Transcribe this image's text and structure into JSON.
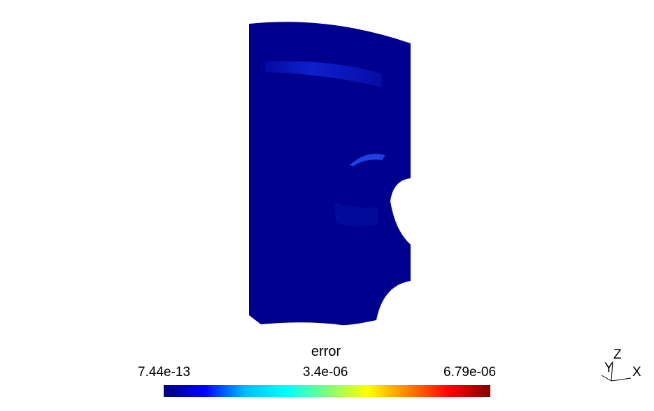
{
  "legend": {
    "title": "error",
    "tick_min": "7.44e-13",
    "tick_mid": "3.4e-06",
    "tick_max": "6.79e-06",
    "colormap": [
      "#00007f",
      "#0000ff",
      "#00bfff",
      "#00ffff",
      "#7fff7f",
      "#ffff00",
      "#ff7f00",
      "#ff0000",
      "#7f0000"
    ]
  },
  "axes": {
    "z": "Z",
    "y": "Y",
    "x": "X"
  },
  "colors": {
    "background": "#ffffff",
    "field_base": "#00008f",
    "hotspot": "#1a3cff"
  }
}
